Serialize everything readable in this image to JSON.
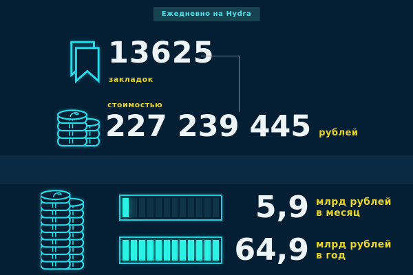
{
  "colors": {
    "background": "#041e33",
    "accent_cyan": "#25dce8",
    "bar_fill_cyan": "#2bf2e4",
    "accent_yellow": "#e5d32b",
    "number_white": "#edf4f7",
    "badge_bg": "#174350"
  },
  "header": {
    "badge_label": "Ежедневно на Hydra"
  },
  "bookmarks": {
    "icon": "bookmark-icon",
    "value": "13625",
    "label": "закладок"
  },
  "cost": {
    "icon": "coins-icon",
    "prefix_label": "стоимостью",
    "value": "227 239 445",
    "unit_label": "рублей"
  },
  "totals": {
    "icon": "coin-stack-icon",
    "rows": [
      {
        "value": "5,9",
        "unit_line1": "млрд рублей",
        "unit_line2": "в месяц",
        "segments_total": 12,
        "segments_filled": 1
      },
      {
        "value": "64,9",
        "unit_line1": "млрд рублей",
        "unit_line2": "в год",
        "segments_total": 12,
        "segments_filled": 12
      }
    ]
  },
  "chart_data": {
    "type": "bar",
    "title": "Ежедневно на Hydra",
    "categories": [
      "в месяц",
      "в год"
    ],
    "values": [
      5.9,
      64.9
    ],
    "unit": "млрд рублей",
    "segments_per_bar": 12,
    "segments_filled": [
      1,
      12
    ],
    "related_stats": {
      "bookmarks_count": 13625,
      "bookmarks_label": "закладок",
      "cost_label": "стоимостью",
      "cost_value_rub": "227 239 445",
      "cost_unit": "рублей"
    },
    "legend_position": "none",
    "grid": false
  }
}
